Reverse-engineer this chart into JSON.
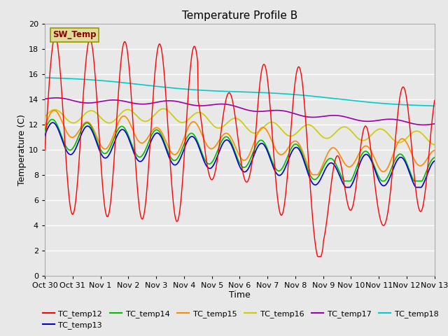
{
  "title": "Temperature Profile B",
  "xlabel": "Time",
  "ylabel": "Temperature (C)",
  "ylim": [
    0,
    20
  ],
  "xlim": [
    0,
    14
  ],
  "series_colors": {
    "TC_temp12": "#ff0000",
    "TC_temp13": "#0000cc",
    "TC_temp14": "#00bb00",
    "TC_temp15": "#ff8800",
    "TC_temp16": "#cccc00",
    "TC_temp17": "#9900aa",
    "TC_temp18": "#00cccc"
  },
  "plot_bg": "#e8e8e8",
  "fig_bg": "#e8e8e8",
  "grid_color": "#ffffff",
  "sw_temp_box_color": "#dddd99",
  "sw_temp_text_color": "#880000",
  "sw_temp_border_color": "#999900",
  "tick_labels": [
    "Oct 30",
    "Oct 31",
    "Nov 1",
    "Nov 2",
    "Nov 3",
    "Nov 4",
    "Nov 5",
    "Nov 6",
    "Nov 7",
    "Nov 8",
    "Nov 9",
    "Nov 10",
    "Nov 11",
    "Nov 12",
    "Nov 13"
  ],
  "yticks": [
    0,
    2,
    4,
    6,
    8,
    10,
    12,
    14,
    16,
    18,
    20
  ]
}
